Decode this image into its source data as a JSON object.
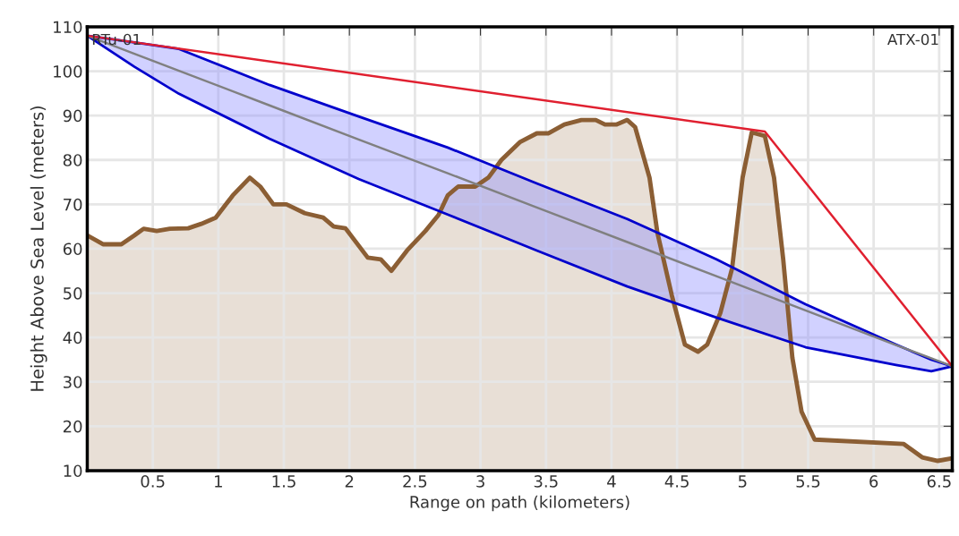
{
  "chart_data": {
    "type": "area",
    "xlabel": "Range on path (kilometers)",
    "ylabel": "Height Above Sea Level (meters)",
    "xlim": [
      0,
      6.6
    ],
    "ylim": [
      10,
      110
    ],
    "xticks": [
      0.5,
      1,
      1.5,
      2,
      2.5,
      3,
      3.5,
      4,
      4.5,
      5,
      5.5,
      6,
      6.5
    ],
    "yticks": [
      10,
      20,
      30,
      40,
      50,
      60,
      70,
      80,
      90,
      100,
      110
    ],
    "grid": true,
    "annotations": [
      "RTu-01",
      "ATX-01"
    ],
    "series": [
      {
        "color": "#8b5e34",
        "x": [
          0,
          0.12,
          0.26,
          0.36,
          0.43,
          0.53,
          0.63,
          0.77,
          0.87,
          0.98,
          1.11,
          1.24,
          1.32,
          1.42,
          1.52,
          1.66,
          1.8,
          1.88,
          1.97,
          2.14,
          2.24,
          2.32,
          2.44,
          2.58,
          2.68,
          2.75,
          2.83,
          2.96,
          3.06,
          3.16,
          3.3,
          3.43,
          3.52,
          3.64,
          3.77,
          3.88,
          3.95,
          4.04,
          4.12,
          4.18,
          4.29,
          4.35,
          4.46,
          4.56,
          4.66,
          4.73,
          4.83,
          4.92,
          5.0,
          5.07,
          5.17,
          5.24,
          5.31,
          5.38,
          5.45,
          5.55,
          6.23,
          6.37,
          6.49,
          6.6
        ],
        "values": [
          63,
          61,
          61,
          63,
          64.5,
          64,
          64.5,
          64.6,
          65.6,
          67,
          72,
          76,
          74,
          70,
          70,
          68,
          67,
          65,
          64.6,
          58,
          57.6,
          55,
          59.6,
          64,
          67.6,
          72,
          74,
          74,
          76,
          80,
          84,
          86,
          86,
          88,
          89,
          89,
          88,
          88,
          89,
          87.4,
          76,
          63.6,
          49.5,
          38.4,
          36.8,
          38.4,
          45.5,
          55.6,
          76,
          86.2,
          85.4,
          76,
          57.6,
          35.4,
          23.3,
          17,
          16,
          13,
          12.2,
          12.8
        ]
      },
      {
        "type": "line",
        "color": "#808080",
        "x": [
          0,
          0.36,
          0.7,
          1.39,
          2.07,
          2.75,
          3.43,
          4.12,
          4.8,
          5.48,
          6.17,
          6.44,
          6.6
        ],
        "values": [
          108,
          103.9,
          100.1,
          92.3,
          84.6,
          77,
          69.3,
          61.5,
          53.8,
          46.1,
          38.3,
          35.3,
          33.5
        ],
        "upper": [
          108,
          106.5,
          105,
          96.9,
          89.8,
          82.8,
          74.7,
          66.7,
          57.6,
          47.5,
          38.4,
          35,
          33.5
        ],
        "lower": [
          108,
          101,
          94.9,
          84.8,
          75.7,
          67.7,
          59.6,
          51.5,
          44.5,
          37.8,
          33.8,
          32.4,
          33.5
        ]
      },
      {
        "type": "line",
        "color": "#e02030",
        "x": [
          0,
          5.17,
          6.6
        ],
        "values": [
          108,
          86.4,
          33.5
        ]
      }
    ]
  }
}
